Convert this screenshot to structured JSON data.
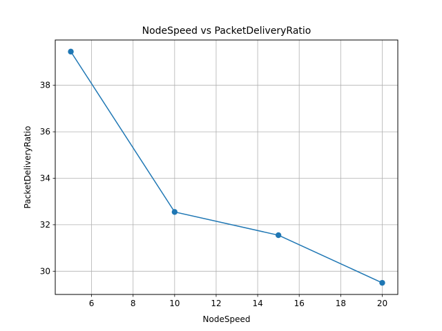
{
  "chart_data": {
    "type": "line",
    "title": "NodeSpeed vs PacketDeliveryRatio",
    "xlabel": "NodeSpeed",
    "ylabel": "PacketDeliveryRatio",
    "x": [
      5,
      10,
      15,
      20
    ],
    "series": [
      {
        "values": [
          39.45,
          32.55,
          31.55,
          29.5
        ],
        "color": "#1f77b4",
        "marker": "circle"
      }
    ],
    "xlim": [
      4.25,
      20.75
    ],
    "ylim": [
      29.0,
      39.95
    ],
    "xticks": [
      6,
      8,
      10,
      12,
      14,
      16,
      18,
      20
    ],
    "yticks": [
      30,
      32,
      34,
      36,
      38
    ],
    "grid": true
  }
}
